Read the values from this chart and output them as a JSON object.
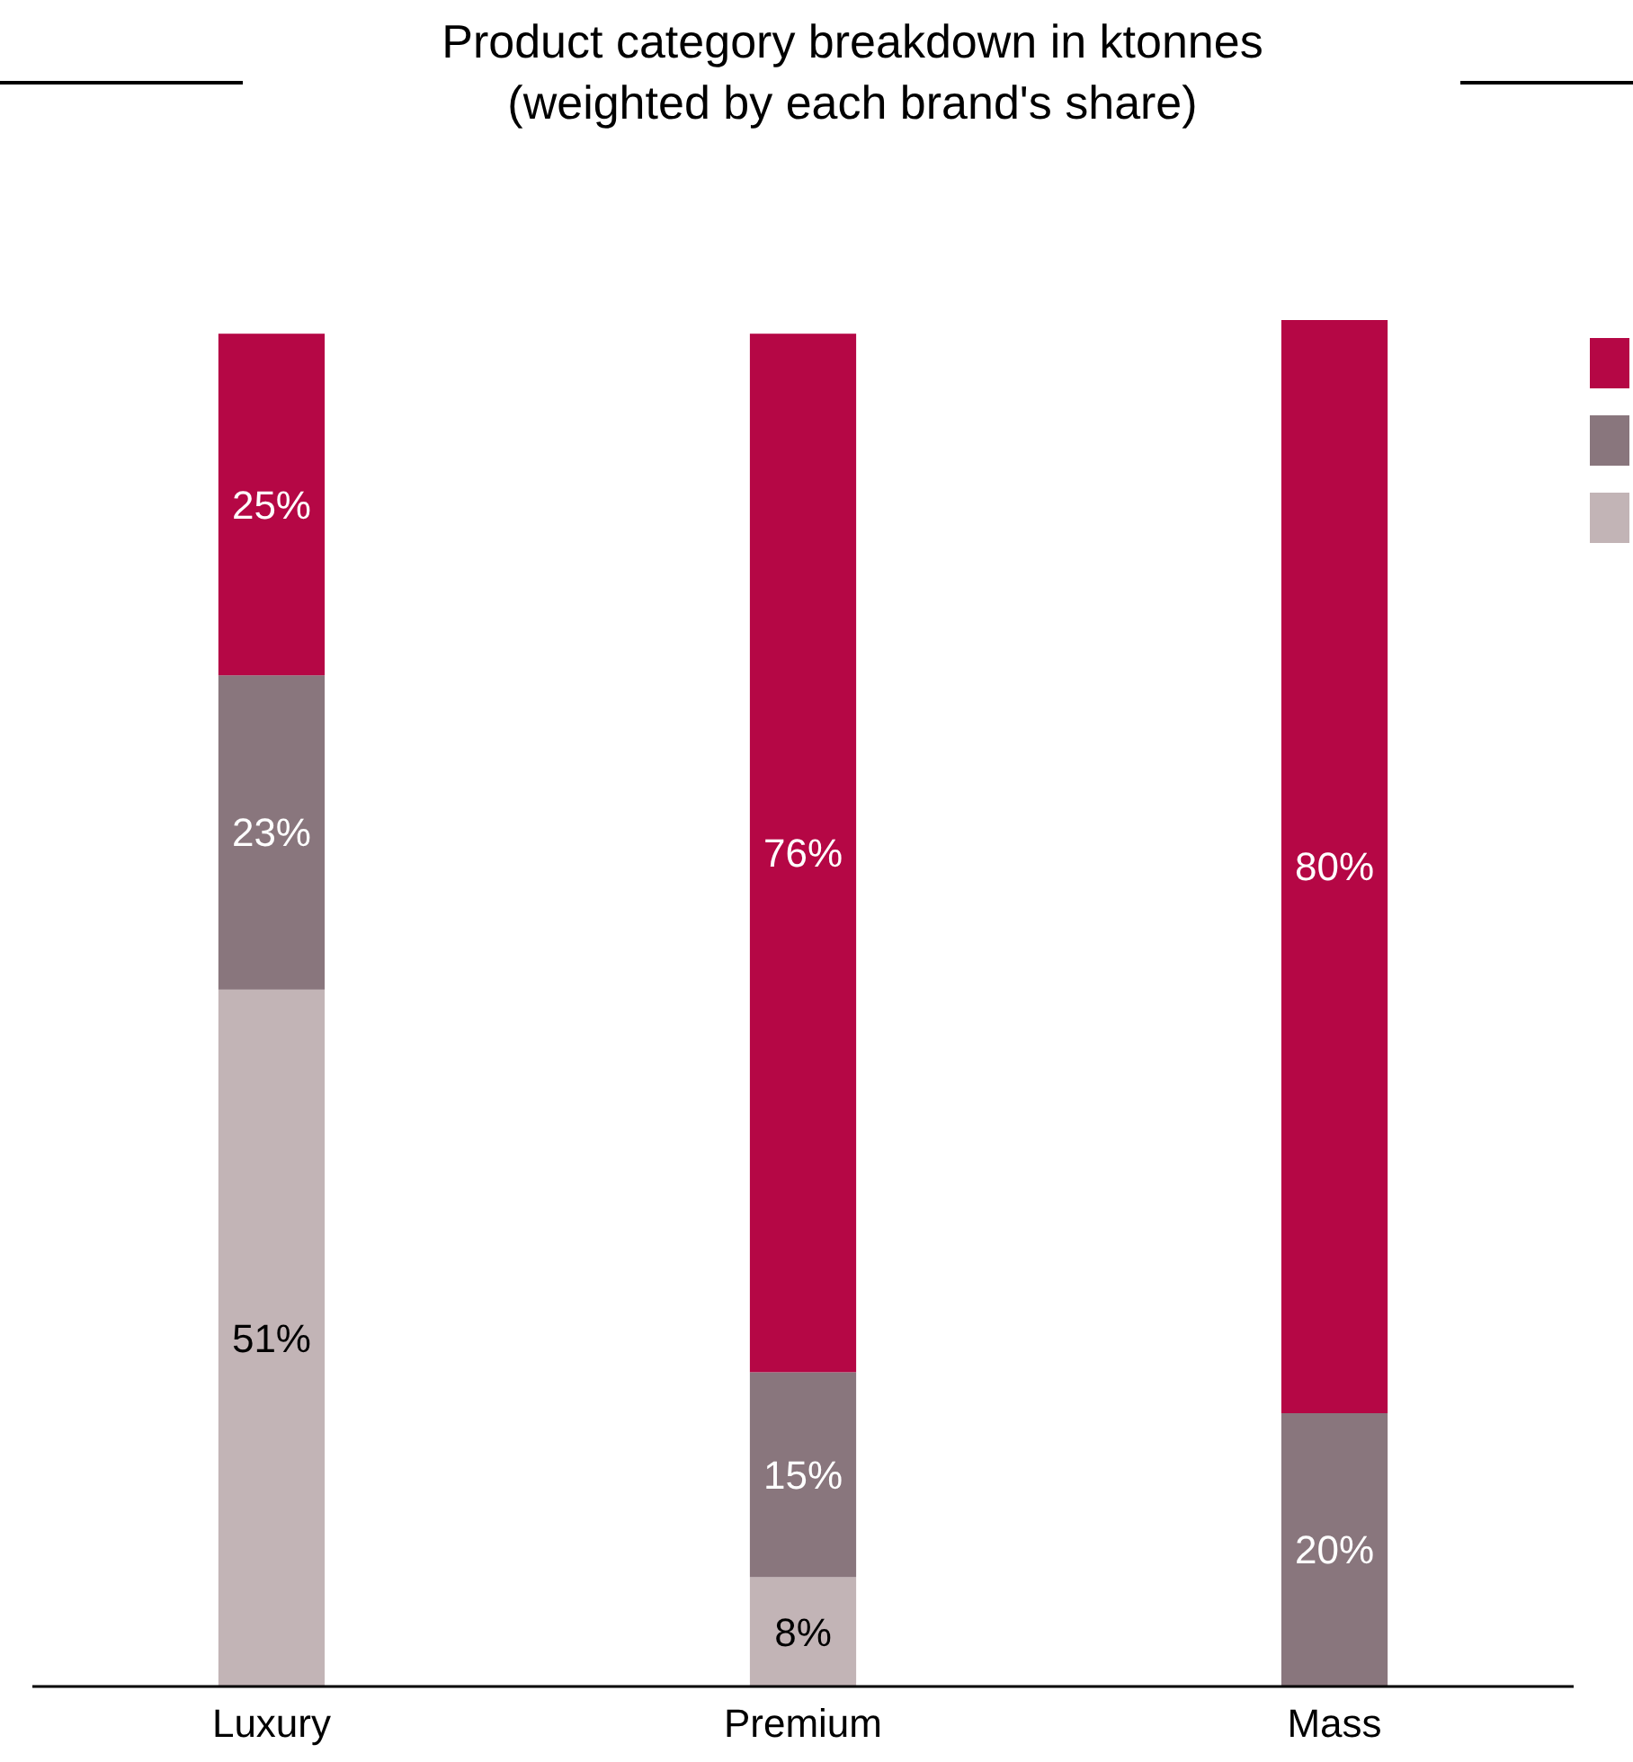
{
  "chart_data": {
    "type": "bar",
    "title": "Product category breakdown in ktonnes\n(weighted by each brand's share)",
    "categories": [
      "Luxury",
      "Premium",
      "Mass"
    ],
    "stacked": true,
    "series": [
      {
        "color": "#c2b4b6",
        "values": [
          51,
          8,
          null
        ],
        "value_labels": [
          "51%",
          "8%",
          null
        ]
      },
      {
        "color": "#89767d",
        "values": [
          23,
          15,
          20
        ],
        "value_labels": [
          "23%",
          "15%",
          "20%"
        ]
      },
      {
        "color": "#b50745",
        "values": [
          25,
          76,
          80
        ],
        "value_labels": [
          "25%",
          "76%",
          "80%"
        ]
      }
    ]
  }
}
